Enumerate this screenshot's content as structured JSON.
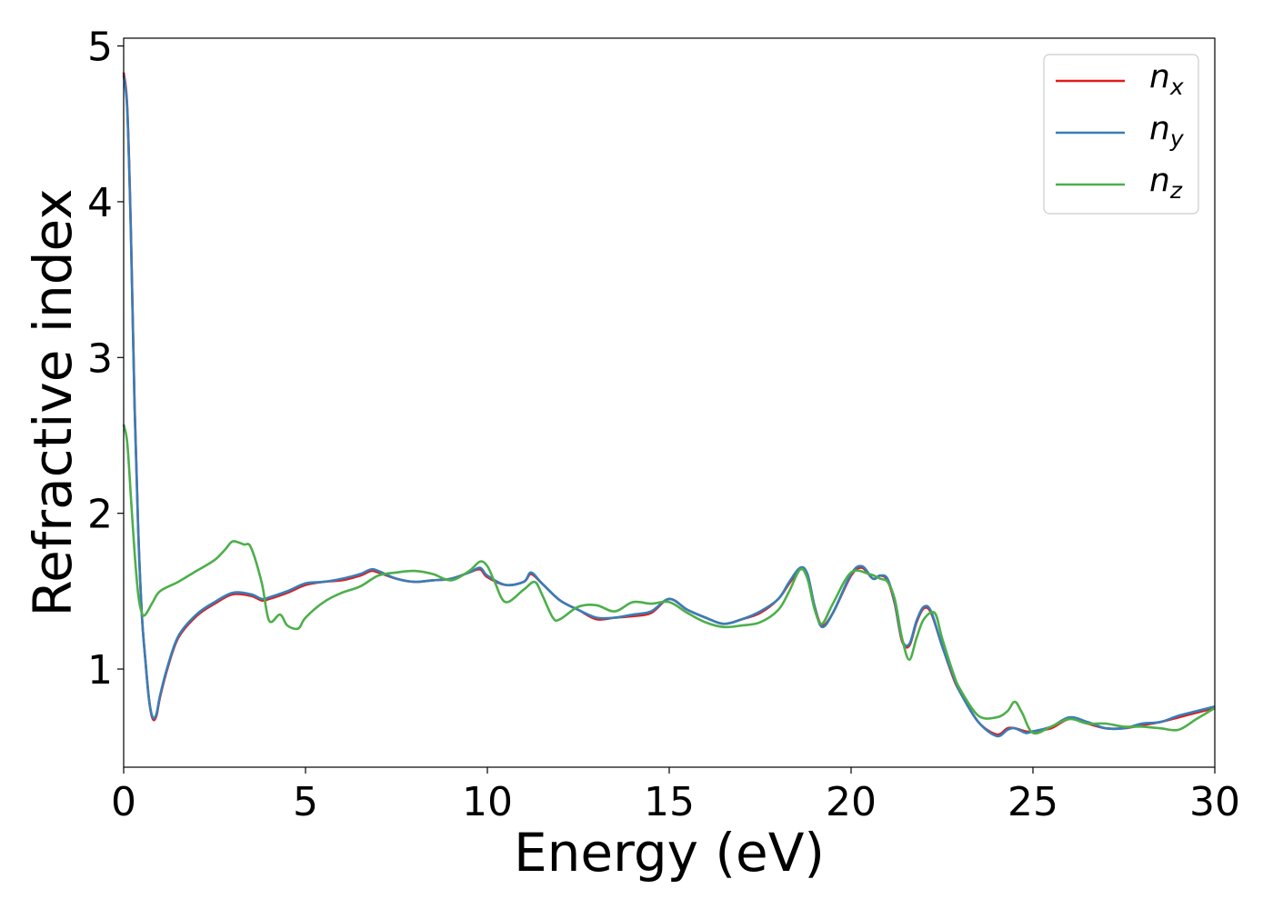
{
  "chart_data": {
    "type": "line",
    "xlabel": "Energy (eV)",
    "ylabel": "Refractive index",
    "xlim": [
      0,
      30
    ],
    "ylim": [
      0.37,
      5.05
    ],
    "xticks": [
      0,
      5,
      10,
      15,
      20,
      25,
      30
    ],
    "xtick_labels": [
      "0",
      "5",
      "10",
      "15",
      "20",
      "25",
      "30"
    ],
    "yticks": [
      1,
      2,
      3,
      4,
      5
    ],
    "ytick_labels": [
      "1",
      "2",
      "3",
      "4",
      "5"
    ],
    "grid": false,
    "legend_position": "top-right",
    "series": [
      {
        "name": "n_x",
        "legend_main": "n",
        "legend_sub": "x",
        "color": "#e41a1c",
        "x": [
          0,
          0.1,
          0.2,
          0.3,
          0.4,
          0.5,
          0.6,
          0.7,
          0.8,
          0.9,
          1.0,
          1.2,
          1.5,
          2.0,
          2.5,
          3.0,
          3.5,
          3.8,
          4.0,
          4.5,
          5.0,
          5.5,
          6.0,
          6.5,
          6.8,
          7.0,
          7.5,
          8.0,
          8.5,
          9.0,
          9.5,
          9.8,
          10.0,
          10.5,
          11.0,
          11.2,
          11.5,
          12.0,
          12.5,
          13.0,
          13.5,
          14.0,
          14.5,
          15.0,
          15.5,
          16.0,
          16.5,
          17.0,
          17.5,
          18.0,
          18.3,
          18.6,
          18.8,
          19.0,
          19.2,
          19.5,
          20.0,
          20.3,
          20.6,
          20.8,
          21.0,
          21.2,
          21.4,
          21.6,
          21.8,
          22.0,
          22.2,
          22.5,
          22.8,
          23.0,
          23.5,
          24.0,
          24.3,
          24.5,
          24.8,
          25.0,
          25.5,
          26.0,
          26.5,
          27.0,
          27.5,
          28.0,
          28.5,
          29.0,
          29.5,
          30.0
        ],
        "values": [
          4.83,
          4.6,
          3.8,
          2.7,
          1.9,
          1.35,
          1.05,
          0.8,
          0.68,
          0.7,
          0.82,
          1.0,
          1.2,
          1.34,
          1.42,
          1.48,
          1.47,
          1.44,
          1.45,
          1.49,
          1.54,
          1.56,
          1.57,
          1.6,
          1.63,
          1.62,
          1.58,
          1.56,
          1.57,
          1.58,
          1.62,
          1.64,
          1.59,
          1.54,
          1.56,
          1.61,
          1.55,
          1.44,
          1.38,
          1.32,
          1.33,
          1.34,
          1.36,
          1.45,
          1.38,
          1.33,
          1.29,
          1.32,
          1.36,
          1.45,
          1.55,
          1.64,
          1.6,
          1.4,
          1.28,
          1.36,
          1.6,
          1.65,
          1.58,
          1.6,
          1.57,
          1.42,
          1.18,
          1.15,
          1.3,
          1.39,
          1.36,
          1.15,
          0.95,
          0.85,
          0.66,
          0.58,
          0.62,
          0.62,
          0.6,
          0.6,
          0.62,
          0.68,
          0.65,
          0.62,
          0.62,
          0.64,
          0.66,
          0.69,
          0.72,
          0.75
        ]
      },
      {
        "name": "n_y",
        "legend_main": "n",
        "legend_sub": "y",
        "color": "#377eb8",
        "x": [
          0,
          0.1,
          0.2,
          0.3,
          0.4,
          0.5,
          0.6,
          0.7,
          0.8,
          0.9,
          1.0,
          1.2,
          1.5,
          2.0,
          2.5,
          3.0,
          3.5,
          3.8,
          4.0,
          4.5,
          5.0,
          5.5,
          6.0,
          6.5,
          6.8,
          7.0,
          7.5,
          8.0,
          8.5,
          9.0,
          9.5,
          9.8,
          10.0,
          10.5,
          11.0,
          11.2,
          11.5,
          12.0,
          12.5,
          13.0,
          13.5,
          14.0,
          14.5,
          15.0,
          15.5,
          16.0,
          16.5,
          17.0,
          17.5,
          18.0,
          18.3,
          18.6,
          18.8,
          19.0,
          19.2,
          19.5,
          20.0,
          20.3,
          20.6,
          20.8,
          21.0,
          21.2,
          21.4,
          21.6,
          21.8,
          22.0,
          22.2,
          22.5,
          22.8,
          23.0,
          23.5,
          24.0,
          24.3,
          24.5,
          24.8,
          25.0,
          25.5,
          26.0,
          26.5,
          27.0,
          27.5,
          28.0,
          28.5,
          29.0,
          29.5,
          30.0
        ],
        "values": [
          4.81,
          4.58,
          3.78,
          2.68,
          1.89,
          1.35,
          1.05,
          0.8,
          0.69,
          0.71,
          0.83,
          1.01,
          1.21,
          1.35,
          1.43,
          1.49,
          1.48,
          1.45,
          1.46,
          1.5,
          1.55,
          1.56,
          1.58,
          1.61,
          1.64,
          1.63,
          1.58,
          1.56,
          1.57,
          1.58,
          1.62,
          1.65,
          1.6,
          1.54,
          1.56,
          1.62,
          1.55,
          1.44,
          1.38,
          1.33,
          1.33,
          1.35,
          1.37,
          1.45,
          1.38,
          1.33,
          1.29,
          1.32,
          1.37,
          1.45,
          1.56,
          1.65,
          1.61,
          1.4,
          1.27,
          1.36,
          1.61,
          1.66,
          1.58,
          1.6,
          1.58,
          1.43,
          1.19,
          1.16,
          1.31,
          1.4,
          1.37,
          1.15,
          0.96,
          0.85,
          0.66,
          0.57,
          0.61,
          0.62,
          0.59,
          0.6,
          0.63,
          0.69,
          0.66,
          0.62,
          0.62,
          0.65,
          0.66,
          0.7,
          0.73,
          0.76
        ]
      },
      {
        "name": "n_z",
        "legend_main": "n",
        "legend_sub": "z",
        "color": "#4daf4a",
        "x": [
          0,
          0.1,
          0.2,
          0.3,
          0.4,
          0.5,
          0.6,
          0.8,
          1.0,
          1.5,
          2.0,
          2.5,
          2.8,
          3.0,
          3.3,
          3.5,
          3.8,
          4.0,
          4.3,
          4.5,
          4.8,
          5.0,
          5.5,
          6.0,
          6.5,
          7.0,
          7.5,
          8.0,
          8.5,
          9.0,
          9.5,
          9.8,
          10.0,
          10.2,
          10.5,
          11.0,
          11.3,
          11.5,
          11.8,
          12.0,
          12.5,
          13.0,
          13.5,
          14.0,
          14.5,
          15.0,
          15.5,
          16.0,
          16.5,
          17.0,
          17.5,
          18.0,
          18.3,
          18.6,
          18.8,
          19.0,
          19.2,
          19.5,
          20.0,
          20.5,
          20.8,
          21.0,
          21.2,
          21.4,
          21.6,
          21.8,
          22.0,
          22.3,
          22.5,
          22.8,
          23.0,
          23.5,
          24.0,
          24.3,
          24.5,
          24.7,
          25.0,
          25.5,
          26.0,
          26.5,
          27.0,
          27.5,
          28.0,
          28.5,
          29.0,
          29.5,
          30.0
        ],
        "values": [
          2.57,
          2.45,
          2.1,
          1.75,
          1.48,
          1.36,
          1.35,
          1.43,
          1.5,
          1.56,
          1.63,
          1.7,
          1.77,
          1.82,
          1.8,
          1.78,
          1.55,
          1.31,
          1.35,
          1.28,
          1.26,
          1.33,
          1.43,
          1.49,
          1.53,
          1.6,
          1.62,
          1.63,
          1.61,
          1.57,
          1.63,
          1.69,
          1.66,
          1.56,
          1.43,
          1.51,
          1.56,
          1.48,
          1.33,
          1.32,
          1.4,
          1.41,
          1.37,
          1.43,
          1.42,
          1.43,
          1.36,
          1.3,
          1.27,
          1.28,
          1.3,
          1.38,
          1.5,
          1.64,
          1.58,
          1.38,
          1.29,
          1.42,
          1.62,
          1.61,
          1.58,
          1.56,
          1.45,
          1.2,
          1.06,
          1.2,
          1.32,
          1.36,
          1.2,
          0.98,
          0.87,
          0.7,
          0.69,
          0.73,
          0.79,
          0.72,
          0.59,
          0.63,
          0.68,
          0.65,
          0.65,
          0.63,
          0.63,
          0.62,
          0.61,
          0.68,
          0.75
        ]
      }
    ]
  }
}
